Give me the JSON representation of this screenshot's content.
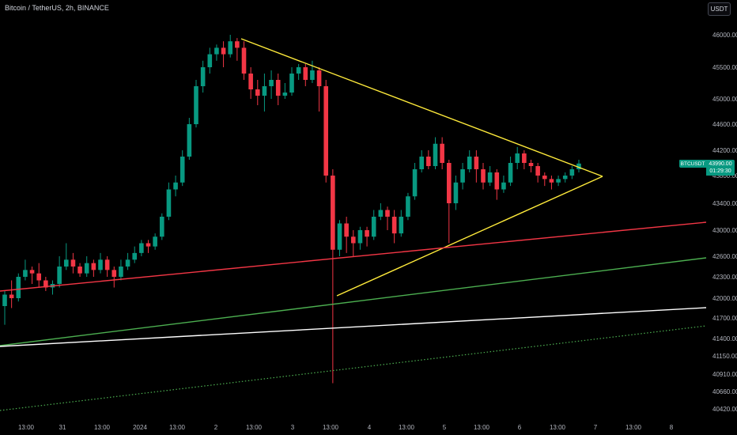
{
  "header": {
    "title": "Bitcoin / TetherUS, 2h, BINANCE",
    "currency_button": "USDT"
  },
  "badges": {
    "symbol": "BTCUSDT",
    "price": "43990.00",
    "countdown": "01:29:30"
  },
  "colors": {
    "up": "#089981",
    "down": "#f23645",
    "triangle": "#ffeb3b",
    "red_line": "#f23645",
    "green_line": "#4caf50",
    "white_line": "#ffffff",
    "dotted_line": "#4caf50"
  },
  "chart_data": {
    "type": "candlestick",
    "y_ticks": [
      "46000.00",
      "45500.00",
      "45000.00",
      "44600.00",
      "44200.00",
      "43800.00",
      "43400.00",
      "43000.00",
      "42600.00",
      "42300.00",
      "42000.00",
      "41700.00",
      "41400.00",
      "41150.00",
      "40910.00",
      "40660.00",
      "40420.00"
    ],
    "x_ticks": [
      "13:00",
      "31",
      "13:00",
      "2024",
      "13:00",
      "2",
      "13:00",
      "3",
      "13:00",
      "4",
      "13:00",
      "5",
      "13:00",
      "6",
      "13:00",
      "7",
      "13:00",
      "8"
    ],
    "candles": [
      [
        41880,
        42050,
        41600,
        42100
      ],
      [
        42050,
        42000,
        41850,
        42250
      ],
      [
        42000,
        42300,
        41950,
        42350
      ],
      [
        42300,
        42400,
        42250,
        42550
      ],
      [
        42400,
        42350,
        42200,
        42450
      ],
      [
        42350,
        42250,
        42150,
        42500
      ],
      [
        42250,
        42150,
        42100,
        42300
      ],
      [
        42150,
        42200,
        42050,
        42250
      ],
      [
        42200,
        42450,
        42150,
        42600
      ],
      [
        42450,
        42550,
        42400,
        42800
      ],
      [
        42550,
        42450,
        42350,
        42650
      ],
      [
        42450,
        42350,
        42300,
        42500
      ],
      [
        42350,
        42500,
        42300,
        42600
      ],
      [
        42500,
        42400,
        42300,
        42550
      ],
      [
        42400,
        42550,
        42350,
        42650
      ],
      [
        42550,
        42400,
        42300,
        42600
      ],
      [
        42400,
        42300,
        42150,
        42450
      ],
      [
        42300,
        42450,
        42250,
        42550
      ],
      [
        42450,
        42550,
        42400,
        42650
      ],
      [
        42550,
        42650,
        42500,
        42750
      ],
      [
        42650,
        42800,
        42600,
        42850
      ],
      [
        42800,
        42750,
        42650,
        42850
      ],
      [
        42750,
        42900,
        42700,
        42950
      ],
      [
        42900,
        43200,
        42850,
        43250
      ],
      [
        43200,
        43600,
        43150,
        43700
      ],
      [
        43600,
        43700,
        43500,
        43800
      ],
      [
        43700,
        44100,
        43650,
        44200
      ],
      [
        44100,
        44600,
        44050,
        44700
      ],
      [
        44600,
        45200,
        44550,
        45300
      ],
      [
        45200,
        45500,
        45100,
        45600
      ],
      [
        45500,
        45700,
        45400,
        45800
      ],
      [
        45700,
        45800,
        45600,
        45850
      ],
      [
        45800,
        45700,
        45500,
        45900
      ],
      [
        45700,
        45900,
        45650,
        46000
      ],
      [
        45900,
        45800,
        45600,
        46050
      ],
      [
        45800,
        45400,
        45300,
        45900
      ],
      [
        45400,
        45150,
        45000,
        45500
      ],
      [
        45150,
        45050,
        44900,
        45300
      ],
      [
        45050,
        45200,
        44800,
        45400
      ],
      [
        45200,
        45300,
        45000,
        45450
      ],
      [
        45300,
        45050,
        44900,
        45400
      ],
      [
        45050,
        45100,
        45000,
        45250
      ],
      [
        45100,
        45400,
        45050,
        45500
      ],
      [
        45400,
        45500,
        45300,
        45550
      ],
      [
        45500,
        45300,
        45200,
        45550
      ],
      [
        45300,
        45450,
        45250,
        45600
      ],
      [
        45450,
        45200,
        44800,
        45500
      ],
      [
        45200,
        43800,
        43700,
        45300
      ],
      [
        43800,
        42700,
        40780,
        43900
      ],
      [
        42700,
        43100,
        42600,
        43150
      ],
      [
        43100,
        42900,
        42650,
        43200
      ],
      [
        42900,
        42800,
        42600,
        43000
      ],
      [
        42800,
        43000,
        42700,
        43050
      ],
      [
        43000,
        42900,
        42750,
        43050
      ],
      [
        42900,
        43200,
        42850,
        43300
      ],
      [
        43200,
        43300,
        43150,
        43400
      ],
      [
        43300,
        43200,
        43000,
        43350
      ],
      [
        43200,
        42950,
        42800,
        43300
      ],
      [
        42950,
        43200,
        42900,
        43300
      ],
      [
        43200,
        43500,
        43150,
        43550
      ],
      [
        43500,
        43900,
        43450,
        44000
      ],
      [
        43900,
        44100,
        43850,
        44200
      ],
      [
        44100,
        43950,
        43900,
        44200
      ],
      [
        43950,
        44300,
        43900,
        44400
      ],
      [
        44300,
        44000,
        43900,
        44400
      ],
      [
        44000,
        43400,
        42800,
        44050
      ],
      [
        43400,
        43700,
        43300,
        43800
      ],
      [
        43700,
        43900,
        43600,
        44000
      ],
      [
        43900,
        44100,
        43850,
        44200
      ],
      [
        44100,
        43900,
        43700,
        44200
      ],
      [
        43900,
        43700,
        43600,
        44000
      ],
      [
        43700,
        43850,
        43650,
        43950
      ],
      [
        43850,
        43600,
        43450,
        43900
      ],
      [
        43600,
        43700,
        43550,
        43800
      ],
      [
        43700,
        44000,
        43650,
        44100
      ],
      [
        44000,
        44150,
        43900,
        44250
      ],
      [
        44150,
        44000,
        43900,
        44200
      ],
      [
        44000,
        43950,
        43850,
        44050
      ],
      [
        43950,
        43800,
        43700,
        44000
      ],
      [
        43800,
        43750,
        43650,
        43850
      ],
      [
        43750,
        43700,
        43600,
        43800
      ],
      [
        43700,
        43750,
        43650,
        43800
      ],
      [
        43750,
        43800,
        43700,
        43850
      ],
      [
        43800,
        43900,
        43750,
        43950
      ],
      [
        43900,
        43990,
        43850,
        44050
      ]
    ],
    "trendlines": [
      {
        "name": "triangle-upper",
        "color": "#ffeb3b"
      },
      {
        "name": "triangle-lower",
        "color": "#ffeb3b"
      },
      {
        "name": "red-support",
        "color": "#f23645"
      },
      {
        "name": "green-support",
        "color": "#4caf50"
      },
      {
        "name": "white-support",
        "color": "#ffffff"
      },
      {
        "name": "dotted-green-support",
        "color": "#4caf50"
      }
    ]
  }
}
